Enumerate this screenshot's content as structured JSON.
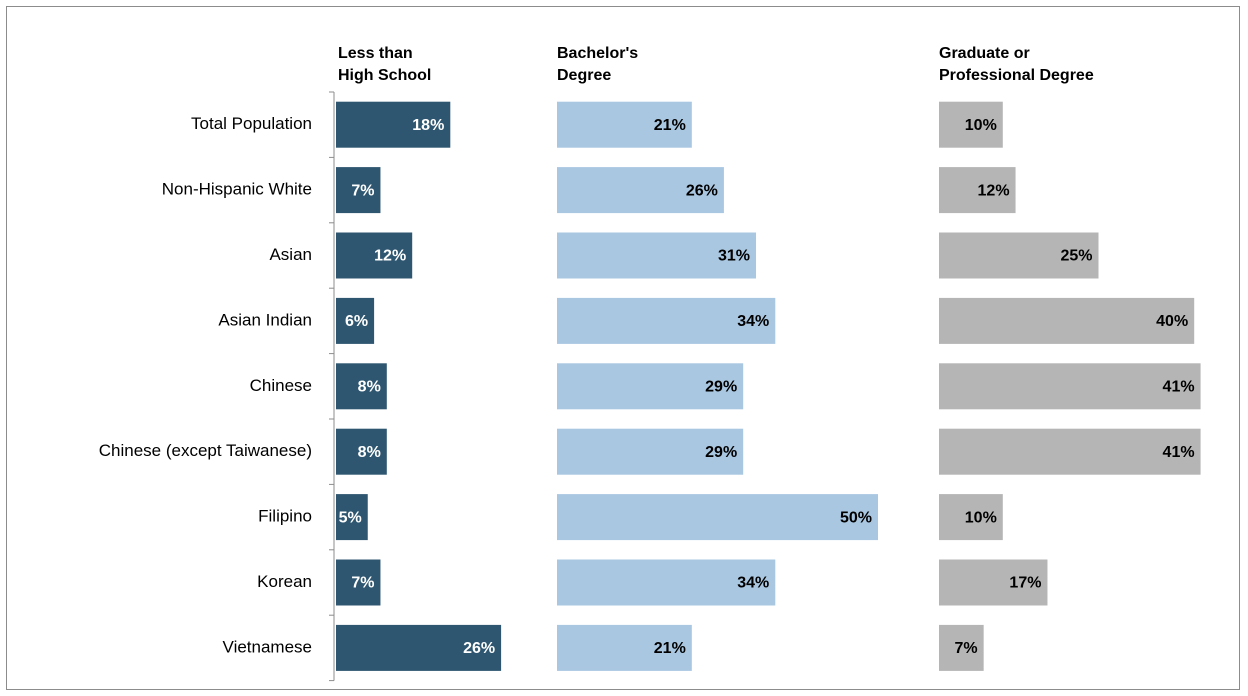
{
  "chart_data": {
    "type": "bar",
    "orientation": "horizontal",
    "categories": [
      "Total Population",
      "Non-Hispanic White",
      "Asian",
      "Asian Indian",
      "Chinese",
      "Chinese (except Taiwanese)",
      "Filipino",
      "Korean",
      "Vietnamese"
    ],
    "series": [
      {
        "name": "Less than High School",
        "name_lines": [
          "Less than",
          "High School"
        ],
        "color": "#2e5670",
        "label_color": "#ffffff",
        "values": [
          18,
          7,
          12,
          6,
          8,
          8,
          5,
          7,
          26
        ],
        "labels": [
          "18%",
          "7%",
          "12%",
          "6%",
          "8%",
          "8%",
          "5%",
          "7%",
          "26%"
        ]
      },
      {
        "name": "Bachelor's Degree",
        "name_lines": [
          "Bachelor's",
          "Degree"
        ],
        "color": "#a9c7e1",
        "label_color": "#000000",
        "values": [
          21,
          26,
          31,
          34,
          29,
          29,
          50,
          34,
          21
        ],
        "labels": [
          "21%",
          "26%",
          "31%",
          "34%",
          "29%",
          "29%",
          "50%",
          "34%",
          "21%"
        ]
      },
      {
        "name": "Graduate or Professional Degree",
        "name_lines": [
          "Graduate or",
          "Professional Degree"
        ],
        "color": "#b5b5b5",
        "label_color": "#000000",
        "values": [
          10,
          12,
          25,
          40,
          41,
          41,
          10,
          17,
          7
        ],
        "labels": [
          "10%",
          "12%",
          "25%",
          "40%",
          "41%",
          "41%",
          "10%",
          "17%",
          "7%"
        ]
      }
    ],
    "unit": "%",
    "grid": false,
    "legend": "none"
  }
}
